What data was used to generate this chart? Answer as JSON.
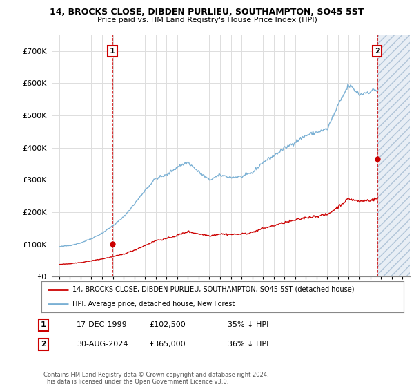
{
  "title": "14, BROCKS CLOSE, DIBDEN PURLIEU, SOUTHAMPTON, SO45 5ST",
  "subtitle": "Price paid vs. HM Land Registry's House Price Index (HPI)",
  "legend_line1": "14, BROCKS CLOSE, DIBDEN PURLIEU, SOUTHAMPTON, SO45 5ST (detached house)",
  "legend_line2": "HPI: Average price, detached house, New Forest",
  "footer": "Contains HM Land Registry data © Crown copyright and database right 2024.\nThis data is licensed under the Open Government Licence v3.0.",
  "transaction1_date": "17-DEC-1999",
  "transaction1_price": "£102,500",
  "transaction1_hpi": "35% ↓ HPI",
  "transaction2_date": "30-AUG-2024",
  "transaction2_price": "£365,000",
  "transaction2_hpi": "36% ↓ HPI",
  "red_color": "#cc0000",
  "blue_color": "#7ab0d4",
  "grid_color": "#dddddd",
  "bg_color": "#f5f5f5",
  "ylim": [
    0,
    750000
  ],
  "yticks": [
    0,
    100000,
    200000,
    300000,
    400000,
    500000,
    600000,
    700000
  ],
  "ytick_labels": [
    "£0",
    "£100K",
    "£200K",
    "£300K",
    "£400K",
    "£500K",
    "£600K",
    "£700K"
  ],
  "hpi_years": [
    1995,
    1996,
    1997,
    1998,
    1999,
    2000,
    2001,
    2002,
    2003,
    2004,
    2005,
    2006,
    2007,
    2008,
    2009,
    2010,
    2011,
    2012,
    2013,
    2014,
    2015,
    2016,
    2017,
    2018,
    2019,
    2020,
    2021,
    2022,
    2023,
    2024,
    2024.67
  ],
  "hpi_values": [
    93000,
    97000,
    105000,
    118000,
    135000,
    158000,
    185000,
    225000,
    268000,
    305000,
    315000,
    340000,
    355000,
    325000,
    300000,
    315000,
    308000,
    310000,
    322000,
    355000,
    375000,
    398000,
    418000,
    438000,
    448000,
    458000,
    530000,
    595000,
    565000,
    575000,
    580000
  ],
  "red_years": [
    1995,
    1996,
    1997,
    1998,
    1999,
    2000,
    2001,
    2002,
    2003,
    2004,
    2005,
    2006,
    2007,
    2008,
    2009,
    2010,
    2011,
    2012,
    2013,
    2014,
    2015,
    2016,
    2017,
    2018,
    2019,
    2020,
    2021,
    2022,
    2023,
    2024,
    2024.67
  ],
  "red_values": [
    38000,
    40000,
    44000,
    49000,
    55000,
    62000,
    70000,
    82000,
    97000,
    112000,
    118000,
    128000,
    140000,
    133000,
    127000,
    133000,
    131000,
    132000,
    137000,
    150000,
    158000,
    168000,
    175000,
    183000,
    188000,
    192000,
    217000,
    242000,
    233000,
    238000,
    242000
  ],
  "marker1_x": 1999.96,
  "marker1_y": 102500,
  "marker2_x": 2024.66,
  "marker2_y": 365000,
  "hatch_start": 2024.67,
  "xlim_left": 1994.3,
  "xlim_right": 2027.7
}
